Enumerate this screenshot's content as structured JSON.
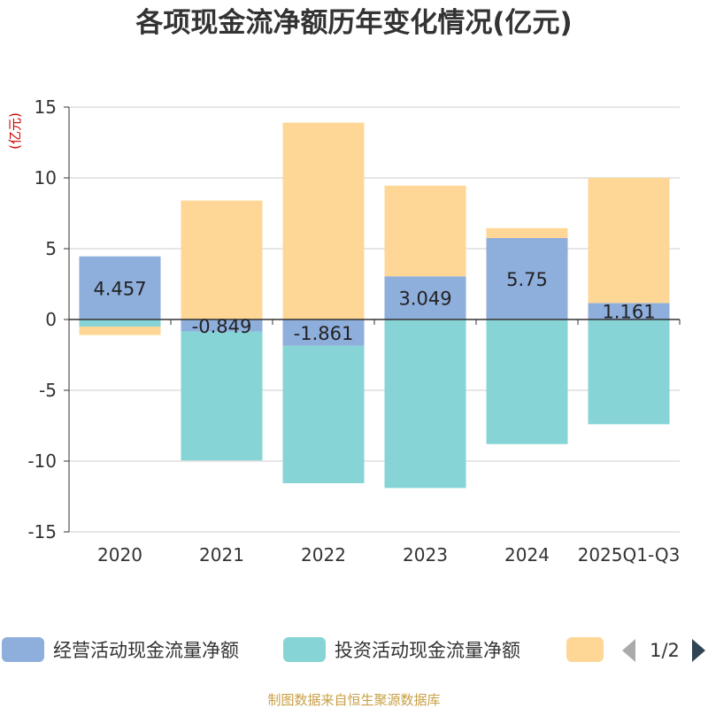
{
  "chart_data": {
    "type": "bar",
    "stacked": true,
    "title": "各项现金流净额历年变化情况(亿元)",
    "unit_label": "(亿元)",
    "categories": [
      "2020",
      "2021",
      "2022",
      "2023",
      "2024",
      "2025Q1-Q3"
    ],
    "ylim": [
      -15,
      15
    ],
    "yticks": [
      15,
      10,
      5,
      0,
      -5,
      -10,
      -15
    ],
    "grid": true,
    "legend_position": "bottom",
    "series": [
      {
        "name": "经营活动现金流量净额",
        "color": "#8eaedc",
        "values": [
          4.457,
          -0.849,
          -1.861,
          3.049,
          5.75,
          1.161
        ],
        "show_labels": true
      },
      {
        "name": "投资活动现金流量净额",
        "color": "#86d4d6",
        "values": [
          -0.5,
          -9.1,
          -9.7,
          -11.9,
          -8.8,
          -7.4
        ],
        "show_labels": false
      },
      {
        "name": "",
        "color": "#fed797",
        "values": [
          -0.6,
          8.4,
          13.9,
          6.4,
          0.7,
          8.84
        ],
        "show_labels": false
      }
    ]
  },
  "legend": {
    "page_indicator": "1/2"
  },
  "source": "制图数据来自恒生聚源数据库"
}
